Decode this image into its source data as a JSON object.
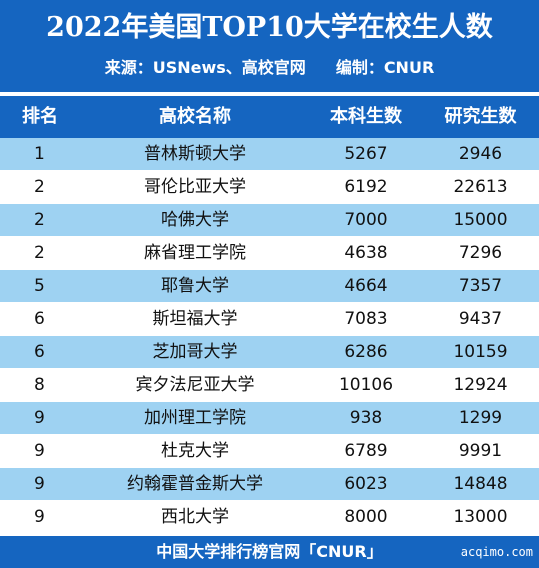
{
  "header": {
    "title": "2022年美国TOP10大学在校生人数",
    "source": "来源：USNews、高校官网",
    "editor": "编制：CNUR"
  },
  "table": {
    "columns": [
      "排名",
      "高校名称",
      "本科生数",
      "研究生数"
    ],
    "rows": [
      {
        "rank": "1",
        "name": "普林斯顿大学",
        "undergrad": "5267",
        "grad": "2946"
      },
      {
        "rank": "2",
        "name": "哥伦比亚大学",
        "undergrad": "6192",
        "grad": "22613"
      },
      {
        "rank": "2",
        "name": "哈佛大学",
        "undergrad": "7000",
        "grad": "15000"
      },
      {
        "rank": "2",
        "name": "麻省理工学院",
        "undergrad": "4638",
        "grad": "7296"
      },
      {
        "rank": "5",
        "name": "耶鲁大学",
        "undergrad": "4664",
        "grad": "7357"
      },
      {
        "rank": "6",
        "name": "斯坦福大学",
        "undergrad": "7083",
        "grad": "9437"
      },
      {
        "rank": "6",
        "name": "芝加哥大学",
        "undergrad": "6286",
        "grad": "10159"
      },
      {
        "rank": "8",
        "name": "宾夕法尼亚大学",
        "undergrad": "10106",
        "grad": "12924"
      },
      {
        "rank": "9",
        "name": "加州理工学院",
        "undergrad": "938",
        "grad": "1299"
      },
      {
        "rank": "9",
        "name": "杜克大学",
        "undergrad": "6789",
        "grad": "9991"
      },
      {
        "rank": "9",
        "name": "约翰霍普金斯大学",
        "undergrad": "6023",
        "grad": "14848"
      },
      {
        "rank": "9",
        "name": "西北大学",
        "undergrad": "8000",
        "grad": "13000"
      }
    ]
  },
  "footer": {
    "text": "中国大学排行榜官网「CNUR」",
    "watermark": "acqimo.com"
  },
  "colors": {
    "header_blue": "#1565c0",
    "row_light_blue": "#9ed2f2"
  }
}
